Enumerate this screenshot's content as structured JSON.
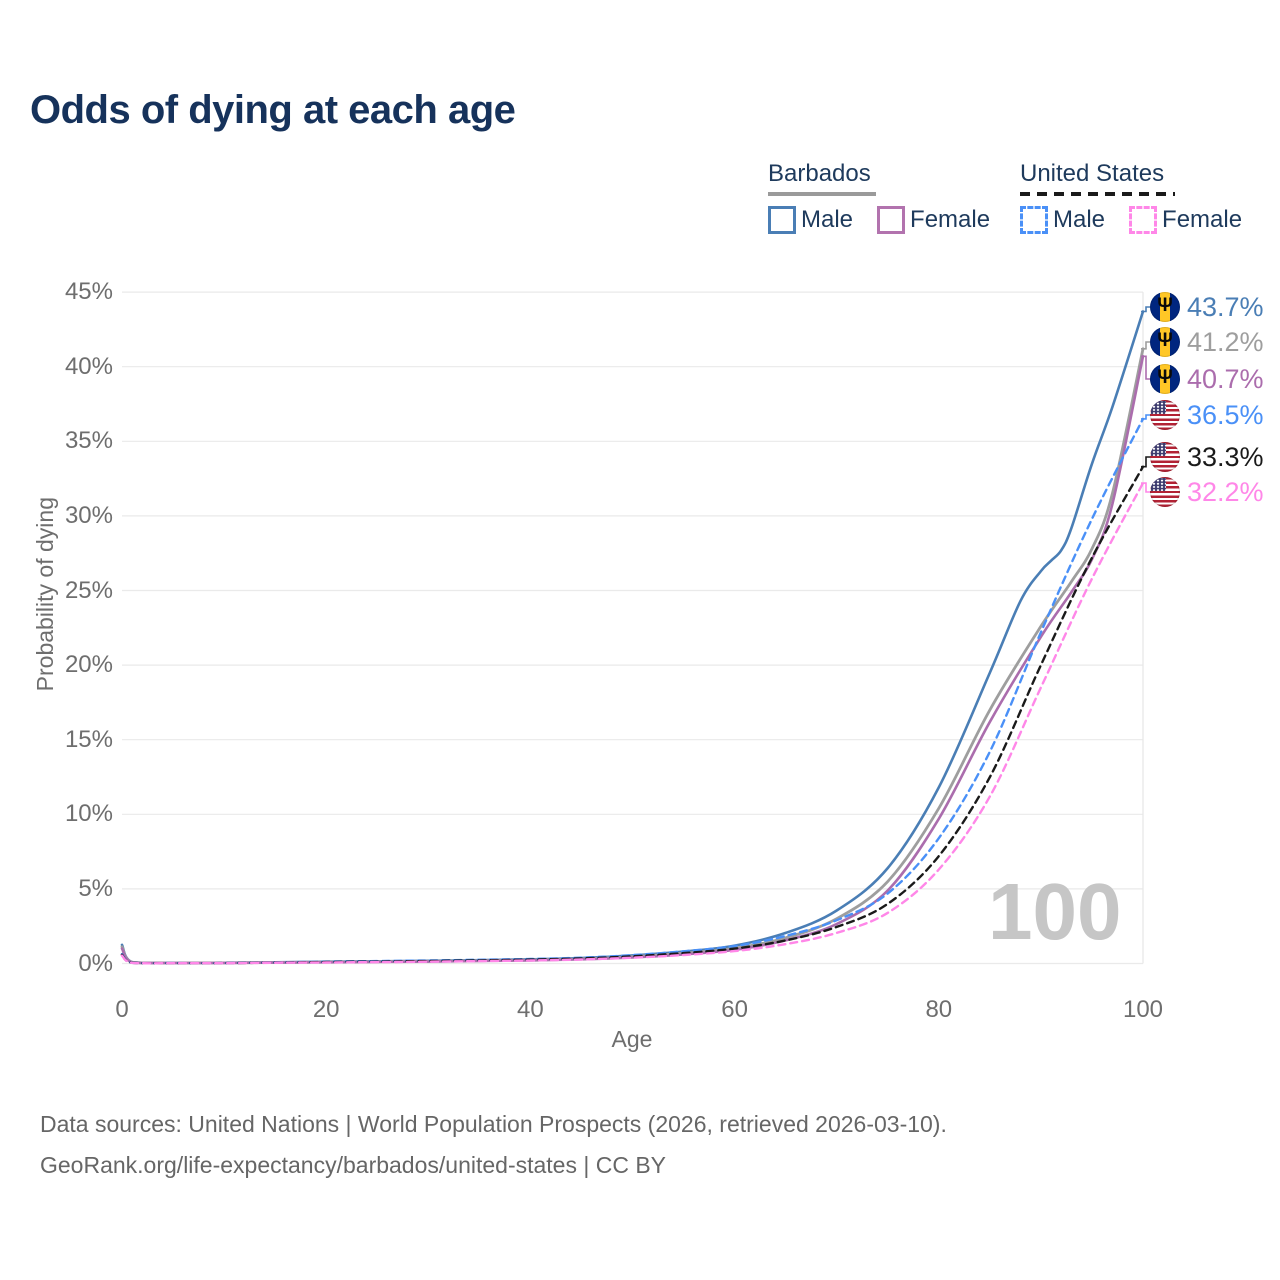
{
  "title": "Odds of dying at each age",
  "legend": {
    "groups": [
      {
        "label": "Barbados",
        "line_style": "solid",
        "underline_color": "#9a9a9a",
        "items": [
          {
            "label": "Male",
            "color": "#4a7eb5"
          },
          {
            "label": "Female",
            "color": "#b273ae"
          }
        ]
      },
      {
        "label": "United States",
        "line_style": "dashed",
        "underline_color": "#1a1a1a",
        "items": [
          {
            "label": "Male",
            "color": "#4a90f7"
          },
          {
            "label": "Female",
            "color": "#ff87e8"
          }
        ]
      }
    ]
  },
  "chart_data": {
    "type": "line",
    "title": "Odds of dying at each age",
    "xlabel": "Age",
    "ylabel": "Probability of dying",
    "xlim": [
      0,
      100
    ],
    "ylim_percent": [
      0,
      45
    ],
    "x_ticks": [
      0,
      20,
      40,
      60,
      80,
      100
    ],
    "y_ticks_percent": [
      0,
      5,
      10,
      15,
      20,
      25,
      30,
      35,
      40,
      45
    ],
    "grid": "horizontal",
    "legend_position": "top-right",
    "series": [
      {
        "name": "Barbados Male",
        "key": "barbados-male",
        "color": "#4a7eb5",
        "dashed": false,
        "width": 2.6,
        "end_value_percent": 43.7,
        "points": [
          [
            0,
            1.25
          ],
          [
            1,
            0.09
          ],
          [
            5,
            0.045
          ],
          [
            10,
            0.05
          ],
          [
            15,
            0.08
          ],
          [
            20,
            0.12
          ],
          [
            25,
            0.15
          ],
          [
            30,
            0.18
          ],
          [
            35,
            0.22
          ],
          [
            40,
            0.28
          ],
          [
            45,
            0.37
          ],
          [
            50,
            0.54
          ],
          [
            55,
            0.8
          ],
          [
            60,
            1.2
          ],
          [
            65,
            2.05
          ],
          [
            70,
            3.55
          ],
          [
            75,
            6.4
          ],
          [
            80,
            11.8
          ],
          [
            85,
            19.5
          ],
          [
            88,
            24.3
          ],
          [
            90,
            26.3
          ],
          [
            91,
            27.0
          ],
          [
            92,
            27.7
          ],
          [
            93,
            29.2
          ],
          [
            95,
            33.5
          ],
          [
            97,
            37.3
          ],
          [
            100,
            43.7
          ]
        ]
      },
      {
        "name": "Barbados Both sexes",
        "key": "barbados-both",
        "color": "#9e9e9e",
        "dashed": false,
        "width": 2.8,
        "end_value_percent": 41.2,
        "points": [
          [
            0,
            1.12
          ],
          [
            1,
            0.08
          ],
          [
            5,
            0.04
          ],
          [
            10,
            0.042
          ],
          [
            15,
            0.07
          ],
          [
            20,
            0.1
          ],
          [
            25,
            0.13
          ],
          [
            30,
            0.15
          ],
          [
            35,
            0.19
          ],
          [
            40,
            0.24
          ],
          [
            45,
            0.31
          ],
          [
            50,
            0.46
          ],
          [
            55,
            0.69
          ],
          [
            60,
            1.02
          ],
          [
            65,
            1.72
          ],
          [
            70,
            3.0
          ],
          [
            75,
            5.5
          ],
          [
            80,
            10.4
          ],
          [
            85,
            17.0
          ],
          [
            90,
            22.6
          ],
          [
            93,
            25.6
          ],
          [
            95,
            27.8
          ],
          [
            97,
            31.5
          ],
          [
            100,
            41.2
          ]
        ]
      },
      {
        "name": "Barbados Female",
        "key": "barbados-female",
        "color": "#ab6dad",
        "dashed": false,
        "width": 2.6,
        "end_value_percent": 40.7,
        "points": [
          [
            0,
            1.0
          ],
          [
            1,
            0.07
          ],
          [
            5,
            0.035
          ],
          [
            10,
            0.037
          ],
          [
            15,
            0.06
          ],
          [
            20,
            0.08
          ],
          [
            25,
            0.11
          ],
          [
            30,
            0.13
          ],
          [
            35,
            0.17
          ],
          [
            40,
            0.21
          ],
          [
            45,
            0.28
          ],
          [
            50,
            0.41
          ],
          [
            55,
            0.61
          ],
          [
            60,
            0.92
          ],
          [
            65,
            1.55
          ],
          [
            70,
            2.65
          ],
          [
            75,
            4.9
          ],
          [
            80,
            9.7
          ],
          [
            85,
            16.2
          ],
          [
            90,
            21.9
          ],
          [
            93,
            24.9
          ],
          [
            95,
            27.1
          ],
          [
            97,
            30.8
          ],
          [
            100,
            40.7
          ]
        ]
      },
      {
        "name": "United States Male",
        "key": "united-states-male",
        "color": "#4a90f7",
        "dashed": true,
        "width": 2.4,
        "end_value_percent": 36.5,
        "points": [
          [
            0,
            0.62
          ],
          [
            1,
            0.05
          ],
          [
            5,
            0.025
          ],
          [
            10,
            0.03
          ],
          [
            15,
            0.07
          ],
          [
            20,
            0.12
          ],
          [
            25,
            0.16
          ],
          [
            30,
            0.2
          ],
          [
            35,
            0.25
          ],
          [
            40,
            0.3
          ],
          [
            45,
            0.39
          ],
          [
            50,
            0.56
          ],
          [
            55,
            0.82
          ],
          [
            60,
            1.17
          ],
          [
            65,
            1.85
          ],
          [
            70,
            2.9
          ],
          [
            75,
            4.7
          ],
          [
            80,
            8.4
          ],
          [
            85,
            14.2
          ],
          [
            90,
            22.2
          ],
          [
            95,
            29.8
          ],
          [
            100,
            36.5
          ]
        ]
      },
      {
        "name": "United States Both sexes",
        "key": "united-states-both",
        "color": "#1a1a1a",
        "dashed": true,
        "width": 2.4,
        "end_value_percent": 33.3,
        "points": [
          [
            0,
            0.58
          ],
          [
            1,
            0.045
          ],
          [
            5,
            0.022
          ],
          [
            10,
            0.026
          ],
          [
            15,
            0.06
          ],
          [
            20,
            0.1
          ],
          [
            25,
            0.13
          ],
          [
            30,
            0.17
          ],
          [
            35,
            0.21
          ],
          [
            40,
            0.26
          ],
          [
            45,
            0.34
          ],
          [
            50,
            0.48
          ],
          [
            55,
            0.7
          ],
          [
            60,
            1.0
          ],
          [
            65,
            1.55
          ],
          [
            70,
            2.45
          ],
          [
            75,
            4.0
          ],
          [
            80,
            7.2
          ],
          [
            85,
            12.5
          ],
          [
            90,
            20.0
          ],
          [
            95,
            27.2
          ],
          [
            100,
            33.3
          ]
        ]
      },
      {
        "name": "United States Female",
        "key": "united-states-female",
        "color": "#ff87e8",
        "dashed": true,
        "width": 2.4,
        "end_value_percent": 32.2,
        "points": [
          [
            0,
            0.53
          ],
          [
            1,
            0.04
          ],
          [
            5,
            0.02
          ],
          [
            10,
            0.022
          ],
          [
            15,
            0.05
          ],
          [
            20,
            0.07
          ],
          [
            25,
            0.095
          ],
          [
            30,
            0.12
          ],
          [
            35,
            0.16
          ],
          [
            40,
            0.2
          ],
          [
            45,
            0.27
          ],
          [
            50,
            0.39
          ],
          [
            55,
            0.57
          ],
          [
            60,
            0.83
          ],
          [
            65,
            1.3
          ],
          [
            70,
            2.05
          ],
          [
            75,
            3.4
          ],
          [
            80,
            6.3
          ],
          [
            85,
            11.2
          ],
          [
            90,
            18.5
          ],
          [
            95,
            25.8
          ],
          [
            100,
            32.2
          ]
        ]
      }
    ]
  },
  "end_labels": [
    {
      "value": "43.7%",
      "flag": "barbados",
      "color": "#4a7eb5"
    },
    {
      "value": "41.2%",
      "flag": "barbados",
      "color": "#9e9e9e"
    },
    {
      "value": "40.7%",
      "flag": "barbados",
      "color": "#ab6dad"
    },
    {
      "value": "36.5%",
      "flag": "united-states",
      "color": "#4a90f7"
    },
    {
      "value": "33.3%",
      "flag": "united-states",
      "color": "#1a1a1a"
    },
    {
      "value": "32.2%",
      "flag": "united-states",
      "color": "#ff87e8"
    }
  ],
  "watermark": "100",
  "footer": {
    "line1": "Data sources: United Nations | World Population Prospects (2026, retrieved 2026-03-10).",
    "line2": "GeoRank.org/life-expectancy/barbados/united-states | CC BY"
  }
}
